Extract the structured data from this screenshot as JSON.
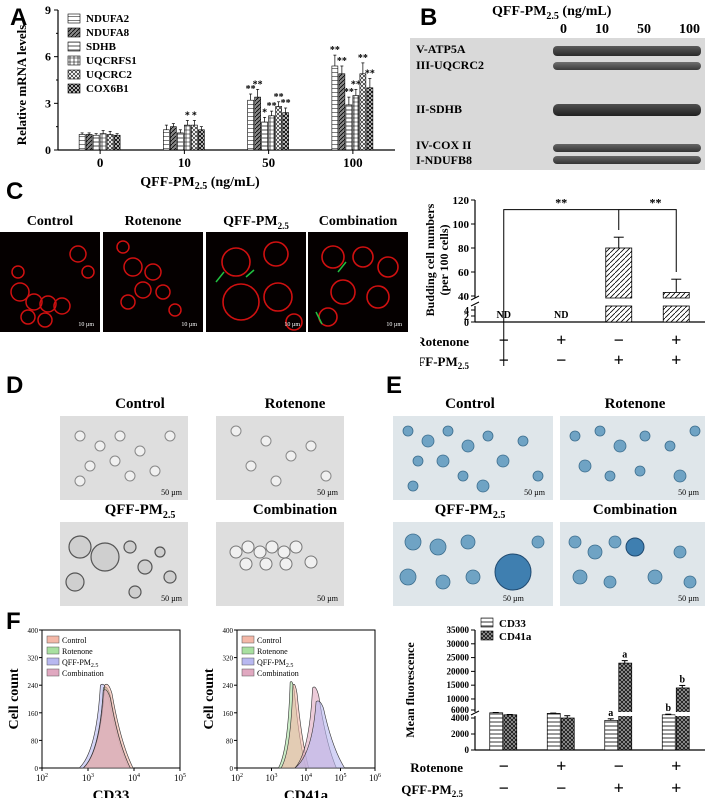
{
  "panels": {
    "A": "A",
    "B": "B",
    "C": "C",
    "D": "D",
    "E": "E",
    "F": "F"
  },
  "panelA": {
    "ylabel": "Relative mRNA levels",
    "xlabel": "QFF-PM",
    "xlabel_sub": "2.5",
    "xlabel_unit": " (ng/mL)",
    "chart_data": {
      "type": "bar",
      "categories": [
        "0",
        "10",
        "50",
        "100"
      ],
      "ylim": [
        0,
        9
      ],
      "yticks": [
        0,
        3,
        6,
        9
      ],
      "series": [
        {
          "name": "NDUFA2",
          "values": [
            1.0,
            1.3,
            3.2,
            5.4
          ],
          "err": [
            0.1,
            0.3,
            0.4,
            0.7
          ],
          "sig": [
            "",
            "",
            "**",
            "**"
          ]
        },
        {
          "name": "NDUFA8",
          "values": [
            1.0,
            1.5,
            3.4,
            4.9
          ],
          "err": [
            0.1,
            0.2,
            0.5,
            0.5
          ],
          "sig": [
            "",
            "",
            "**",
            "**"
          ]
        },
        {
          "name": "SDHB",
          "values": [
            0.95,
            1.1,
            1.8,
            2.9
          ],
          "err": [
            0.1,
            0.2,
            0.3,
            0.5
          ],
          "sig": [
            "",
            "",
            "*",
            "**"
          ]
        },
        {
          "name": "UQCRFS1",
          "values": [
            1.05,
            1.6,
            2.2,
            3.5
          ],
          "err": [
            0.2,
            0.3,
            0.3,
            0.4
          ],
          "sig": [
            "",
            "*",
            "**",
            "**"
          ]
        },
        {
          "name": "UQCRC2",
          "values": [
            1.0,
            1.6,
            2.8,
            4.9
          ],
          "err": [
            0.2,
            0.3,
            0.3,
            0.7
          ],
          "sig": [
            "",
            "*",
            "**",
            "**"
          ]
        },
        {
          "name": "COX6B1",
          "values": [
            0.95,
            1.3,
            2.4,
            4.0
          ],
          "err": [
            0.1,
            0.2,
            0.3,
            0.6
          ],
          "sig": [
            "",
            "",
            "**",
            "**"
          ]
        }
      ]
    }
  },
  "panelB": {
    "header": "QFF-PM",
    "header_sub": "2.5",
    "header_unit": " (ng/mL)",
    "lanes": [
      "0",
      "10",
      "50",
      "100"
    ],
    "bands": [
      "V-ATP5A",
      "III-UQCRC2",
      "II-SDHB",
      "IV-COX II",
      "I-NDUFB8"
    ]
  },
  "panelC": {
    "images": [
      {
        "label": "Control",
        "scale": "10 µm"
      },
      {
        "label": "Rotenone",
        "scale": "10 µm"
      },
      {
        "label": "QFF-PM",
        "sub": "2.5",
        "scale": "10 µm"
      },
      {
        "label": "Combination",
        "scale": "10 µm"
      }
    ],
    "chart": {
      "ylabel1": "Budding cell numbers",
      "ylabel2": "(per 100 cells)",
      "yticks_top": [
        "120",
        "100",
        "80",
        "60",
        "40"
      ],
      "yticks_bottom": [
        "4",
        "2",
        "0"
      ],
      "nd": "ND",
      "sig": "**",
      "row1_label": "Rotenone",
      "row2_label": "QFF-PM",
      "row2_sub": "2.5",
      "row1": [
        "−",
        "+",
        "−",
        "+"
      ],
      "row2": [
        "−",
        "−",
        "+",
        "+"
      ],
      "chart_data": {
        "type": "bar",
        "categories": [
          "Control",
          "Rotenone",
          "QFF-PM2.5",
          "Combination"
        ],
        "values": [
          0,
          0,
          80,
          43
        ],
        "err": [
          0,
          0,
          9,
          11
        ],
        "ylim": [
          0,
          120
        ]
      }
    }
  },
  "panelD": {
    "images": [
      {
        "label": "Control",
        "scale": "50 µm"
      },
      {
        "label": "Rotenone",
        "scale": "50 µm"
      },
      {
        "label": "QFF-PM",
        "sub": "2.5",
        "scale": "50 µm"
      },
      {
        "label": "Combination",
        "scale": "50 µm"
      }
    ]
  },
  "panelE": {
    "images": [
      {
        "label": "Control",
        "scale": "50 µm"
      },
      {
        "label": "Rotenone",
        "scale": "50 µm"
      },
      {
        "label": "QFF-PM",
        "sub": "2.5",
        "scale": "50 µm"
      },
      {
        "label": "Combination",
        "scale": "50 µm"
      }
    ]
  },
  "panelF": {
    "hist1": {
      "xlabel": "CD33",
      "ylabel": "Cell count",
      "yticks": [
        "400",
        "320",
        "240",
        "160",
        "80",
        "0"
      ],
      "xticks": [
        "10",
        "10",
        "10",
        "10"
      ],
      "xexp": [
        "2",
        "3",
        "4",
        "5"
      ]
    },
    "hist2": {
      "xlabel": "CD41a",
      "ylabel": "Cell count",
      "yticks": [
        "400",
        "320",
        "240",
        "160",
        "80",
        "0"
      ],
      "xticks": [
        "10",
        "10",
        "10",
        "10",
        "10"
      ],
      "xexp": [
        "2",
        "3",
        "4",
        "5",
        "6"
      ]
    },
    "legend": [
      {
        "name": "Control",
        "color": "#f4b8a8"
      },
      {
        "name": "Rotenone",
        "color": "#a8e0a0"
      },
      {
        "name": "QFF-PM",
        "sub": "2.5",
        "color": "#b8b8f0"
      },
      {
        "name": "Combination",
        "color": "#e0a8c0"
      }
    ],
    "bar": {
      "ylabel": "Mean fluorescence",
      "yticks_top": [
        "35000",
        "30000",
        "25000",
        "20000",
        "15000",
        "10000",
        "6000"
      ],
      "yticks_bottom": [
        "4000",
        "2000",
        "0"
      ],
      "legend": [
        "CD33",
        "CD41a"
      ],
      "row1_label": "Rotenone",
      "row2_label": "QFF-PM",
      "row2_sub": "2.5",
      "row1": [
        "−",
        "+",
        "−",
        "+"
      ],
      "row2": [
        "−",
        "−",
        "+",
        "+"
      ],
      "chart_data": {
        "type": "bar",
        "categories": [
          "Control",
          "Rotenone",
          "QFF-PM2.5",
          "Combination"
        ],
        "series": [
          {
            "name": "CD33",
            "values": [
              5600,
              5300,
              3700,
              4600
            ],
            "err": [
              150,
              150,
              200,
              300
            ],
            "sig": [
              "",
              "",
              "a",
              "b"
            ]
          },
          {
            "name": "CD41a",
            "values": [
              4600,
              4000,
              23000,
              14000
            ],
            "err": [
              150,
              150,
              900,
              900
            ],
            "sig": [
              "",
              "",
              "a",
              "b"
            ]
          }
        ]
      }
    }
  }
}
